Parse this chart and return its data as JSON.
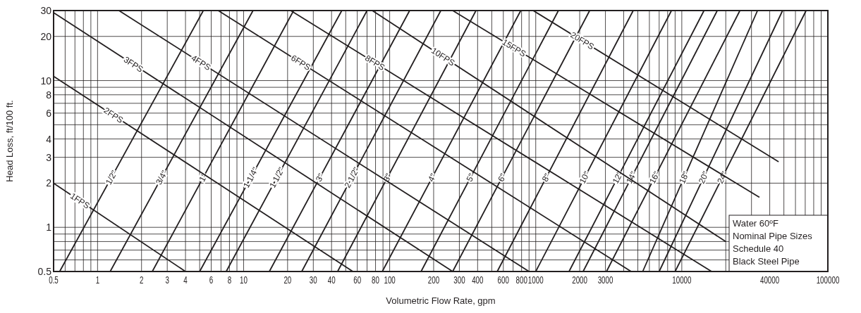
{
  "chart_data": {
    "type": "line",
    "xlabel": "Volumetric Flow Rate, gpm",
    "ylabel": "Head Loss, ft/100 ft.",
    "log": "xy",
    "grid": true,
    "xlim": [
      0.5,
      100000
    ],
    "ylim": [
      0.5,
      30
    ],
    "xticks": [
      0.5,
      1,
      2,
      3,
      4,
      6,
      8,
      10,
      20,
      30,
      40,
      60,
      80,
      100,
      200,
      300,
      400,
      600,
      800,
      1000,
      2000,
      3000,
      10000,
      40000,
      100000
    ],
    "yticks": [
      0.5,
      1,
      2,
      3,
      4,
      6,
      8,
      10,
      20,
      30
    ],
    "annotations": [
      "Water 60ºF",
      "Nominal Pipe Sizes",
      "Schedule 40",
      "Black Steel Pipe"
    ],
    "series": [
      {
        "name": "1/2\"",
        "color": "#231f20",
        "x": [
          0.55,
          5.3
        ],
        "values": [
          0.5,
          30
        ]
      },
      {
        "name": "3/4\"",
        "color": "#231f20",
        "x": [
          1.22,
          11.6
        ],
        "values": [
          0.5,
          30
        ]
      },
      {
        "name": "1\"",
        "color": "#231f20",
        "x": [
          2.37,
          22
        ],
        "values": [
          0.5,
          30
        ]
      },
      {
        "name": "1 1/4\"",
        "color": "#231f20",
        "x": [
          5,
          47
        ],
        "values": [
          0.5,
          30
        ]
      },
      {
        "name": "1 1/2\"",
        "color": "#231f20",
        "x": [
          7.6,
          70
        ],
        "values": [
          0.5,
          30
        ]
      },
      {
        "name": "3\"",
        "color": "#231f20",
        "x": [
          15,
          137
        ],
        "values": [
          0.5,
          30
        ]
      },
      {
        "name": "2 1/2\"",
        "color": "#231f20",
        "x": [
          25,
          224
        ],
        "values": [
          0.5,
          30
        ]
      },
      {
        "name": "3\"",
        "color": "#231f20",
        "x": [
          44,
          390
        ],
        "values": [
          0.5,
          30
        ]
      },
      {
        "name": "4\"",
        "color": "#231f20",
        "x": [
          89,
          790
        ],
        "values": [
          0.5,
          30
        ]
      },
      {
        "name": "5\"",
        "color": "#231f20",
        "x": [
          164,
          1430
        ],
        "values": [
          0.5,
          30
        ]
      },
      {
        "name": "6\"",
        "color": "#231f20",
        "x": [
          270,
          2340
        ],
        "values": [
          0.5,
          30
        ]
      },
      {
        "name": "8\"",
        "color": "#231f20",
        "x": [
          545,
          4650
        ],
        "values": [
          0.5,
          30
        ]
      },
      {
        "name": "10\"",
        "color": "#231f20",
        "x": [
          1000,
          8500
        ],
        "values": [
          0.5,
          30
        ]
      },
      {
        "name": "12\"",
        "color": "#231f20",
        "x": [
          1690,
          14200
        ],
        "values": [
          0.5,
          30
        ]
      },
      {
        "name": "14\"",
        "color": "#231f20",
        "x": [
          2110,
          17500
        ],
        "values": [
          0.5,
          30
        ]
      },
      {
        "name": "16\"",
        "color": "#231f20",
        "x": [
          3050,
          25000
        ],
        "values": [
          0.5,
          30
        ]
      },
      {
        "name": "18\"",
        "color": "#231f20",
        "x": [
          5400,
          33000
        ],
        "values": [
          0.5,
          30
        ]
      },
      {
        "name": "20\"",
        "color": "#231f20",
        "x": [
          7000,
          49000
        ],
        "values": [
          0.5,
          30
        ]
      },
      {
        "name": "24\"",
        "color": "#231f20",
        "x": [
          9000,
          71000
        ],
        "values": [
          0.5,
          30
        ]
      },
      {
        "name": "1FPS",
        "color": "#231f20",
        "x": [
          0.5,
          4
        ],
        "values": [
          2,
          0.5
        ]
      },
      {
        "name": "2FPS",
        "color": "#231f20",
        "x": [
          0.5,
          56
        ],
        "values": [
          10.7,
          0.5
        ]
      },
      {
        "name": "3FPS",
        "color": "#231f20",
        "x": [
          0.5,
          270
        ],
        "values": [
          29,
          0.5
        ]
      },
      {
        "name": "4FPS",
        "color": "#231f20",
        "x": [
          1.4,
          900
        ],
        "values": [
          30,
          0.5
        ]
      },
      {
        "name": "6FPS",
        "color": "#231f20",
        "x": [
          6.7,
          4500
        ],
        "values": [
          30,
          0.5
        ]
      },
      {
        "name": "8FPS",
        "color": "#231f20",
        "x": [
          21,
          16000
        ],
        "values": [
          30,
          0.5
        ]
      },
      {
        "name": "10FPS",
        "color": "#231f20",
        "x": [
          76,
          20000
        ],
        "values": [
          30,
          0.8
        ]
      },
      {
        "name": "15FPS",
        "color": "#231f20",
        "x": [
          270,
          34000
        ],
        "values": [
          30,
          1.6
        ]
      },
      {
        "name": "20FPS",
        "color": "#231f20",
        "x": [
          960,
          46000
        ],
        "values": [
          30,
          2.8
        ]
      }
    ]
  }
}
